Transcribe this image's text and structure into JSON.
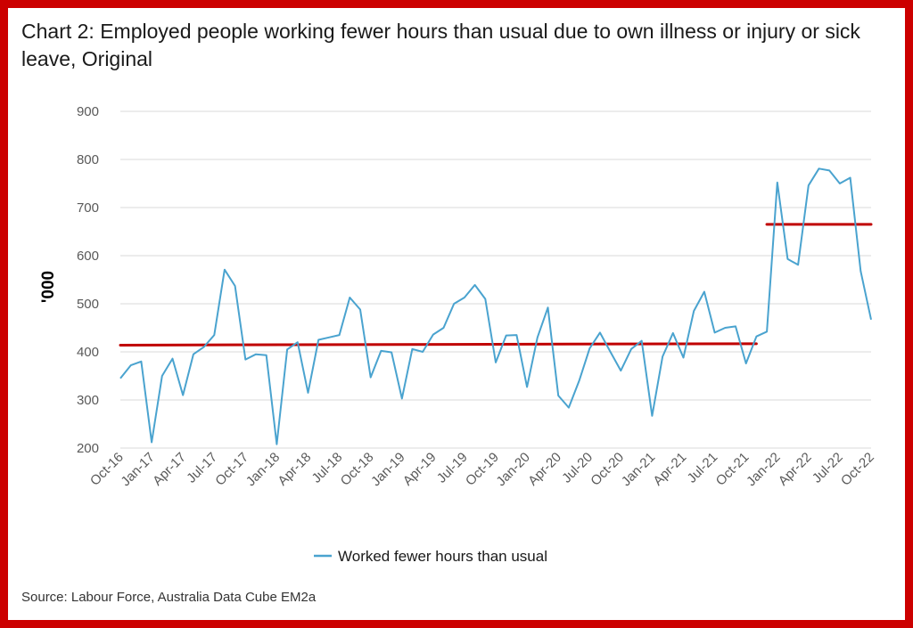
{
  "header": {
    "title": "Chart 2: Employed people working fewer hours than usual due to own illness or injury or sick leave, Original"
  },
  "footer": {
    "source": "Source: Labour Force, Australia Data Cube EM2a"
  },
  "colors": {
    "frame": "#cc0000",
    "series": "#4aa3cf",
    "average": "#c00000",
    "grid": "#d9d9d9"
  },
  "chart_data": {
    "type": "line",
    "title": "Chart 2: Employed people working fewer hours than usual due to own illness or injury or sick leave, Original",
    "ylabel": "'000",
    "xlabel": "",
    "ylim": [
      200,
      900
    ],
    "yticks": [
      200,
      300,
      400,
      500,
      600,
      700,
      800,
      900
    ],
    "xticks": [
      "Oct-16",
      "Jan-17",
      "Apr-17",
      "Jul-17",
      "Oct-17",
      "Jan-18",
      "Apr-18",
      "Jul-18",
      "Oct-18",
      "Jan-19",
      "Apr-19",
      "Jul-19",
      "Oct-19",
      "Jan-20",
      "Apr-20",
      "Jul-20",
      "Oct-20",
      "Jan-21",
      "Apr-21",
      "Jul-21",
      "Oct-21",
      "Jan-22",
      "Apr-22",
      "Jul-22",
      "Oct-22"
    ],
    "grid": true,
    "legend": "bottom",
    "x": [
      "Oct-16",
      "Nov-16",
      "Dec-16",
      "Jan-17",
      "Feb-17",
      "Mar-17",
      "Apr-17",
      "May-17",
      "Jun-17",
      "Jul-17",
      "Aug-17",
      "Sep-17",
      "Oct-17",
      "Nov-17",
      "Dec-17",
      "Jan-18",
      "Feb-18",
      "Mar-18",
      "Apr-18",
      "May-18",
      "Jun-18",
      "Jul-18",
      "Aug-18",
      "Sep-18",
      "Oct-18",
      "Nov-18",
      "Dec-18",
      "Jan-19",
      "Feb-19",
      "Mar-19",
      "Apr-19",
      "May-19",
      "Jun-19",
      "Jul-19",
      "Aug-19",
      "Sep-19",
      "Oct-19",
      "Nov-19",
      "Dec-19",
      "Jan-20",
      "Feb-20",
      "Mar-20",
      "Apr-20",
      "May-20",
      "Jun-20",
      "Jul-20",
      "Aug-20",
      "Sep-20",
      "Oct-20",
      "Nov-20",
      "Dec-20",
      "Jan-21",
      "Feb-21",
      "Mar-21",
      "Apr-21",
      "May-21",
      "Jun-21",
      "Jul-21",
      "Aug-21",
      "Sep-21",
      "Oct-21",
      "Nov-21",
      "Dec-21",
      "Jan-22",
      "Feb-22",
      "Mar-22",
      "Apr-22",
      "May-22",
      "Jun-22",
      "Jul-22",
      "Aug-22",
      "Sep-22",
      "Oct-22"
    ],
    "series": [
      {
        "name": "Worked fewer hours than usual",
        "values": [
          345,
          372,
          380,
          212,
          350,
          386,
          310,
          395,
          410,
          435,
          571,
          537,
          384,
          395,
          393,
          208,
          405,
          420,
          315,
          425,
          430,
          435,
          513,
          488,
          347,
          402,
          399,
          303,
          406,
          400,
          436,
          450,
          500,
          513,
          539,
          510,
          378,
          434,
          435,
          327,
          430,
          492,
          309,
          284,
          340,
          407,
          440,
          400,
          361,
          406,
          423,
          267,
          390,
          439,
          388,
          485,
          525,
          440,
          450,
          453,
          376,
          432,
          442,
          752,
          593,
          581,
          746,
          781,
          777,
          750,
          762,
          568,
          467
        ]
      }
    ],
    "reference_lines": [
      {
        "from": "Oct-16",
        "to": "Nov-21",
        "y_start": 414,
        "y_end": 417
      },
      {
        "from": "Dec-21",
        "to": "Oct-22",
        "y_start": 665,
        "y_end": 665
      }
    ]
  }
}
